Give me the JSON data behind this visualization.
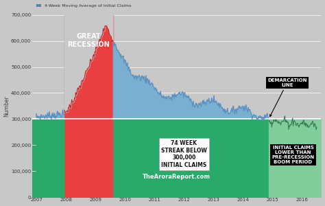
{
  "title": "4-Week Moving Average of Initial Claims",
  "legend_color": "#6080b0",
  "bg_color": "#c8c8c8",
  "green_fill": "#2aaa6a",
  "olive_fill": "#7a6520",
  "red_fill": "#e84040",
  "blue_fill": "#7aafcf",
  "light_green_fill": "#80cc9a",
  "white": "#ffffff",
  "black": "#111111",
  "demarcation_y": 300000,
  "recession_start": 2007.95,
  "recession_end": 2009.6,
  "sub300_start": 2014.87,
  "xmin": 2006.85,
  "xmax": 2016.65,
  "ymin": 0,
  "ymax": 700000,
  "ylabel": "Number",
  "watermark": "TheAroraReport.com",
  "ann1_text": "GREAT\nRECESSION",
  "ann2_text": "DEMARCATION\nLINE",
  "ann3_text": "74 WEEK\nSTREAK BELOW\n300,000\nINITIAL CLAIMS",
  "ann4_text": "INITIAL CLAIMS\nLOWER THAN\nPRE-RECESSION\nBOOM PERIOD",
  "xticks": [
    2007,
    2008,
    2009,
    2010,
    2011,
    2012,
    2013,
    2014,
    2015,
    2016
  ],
  "ytick_vals": [
    0,
    100000,
    200000,
    300000,
    400000,
    500000,
    600000,
    700000
  ],
  "ytick_labels": [
    "0",
    "100,000",
    "200,000",
    "300,000",
    "400,000",
    "500,000",
    "600,000",
    "700,000"
  ]
}
